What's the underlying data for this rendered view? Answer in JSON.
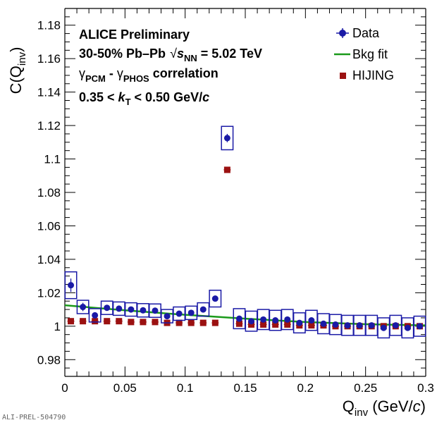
{
  "chart_data": {
    "type": "scatter",
    "title": "",
    "xlabel": {
      "main": "Q",
      "sub": "inv",
      "unit_pre": " (GeV/",
      "unit_var": "c",
      "unit_post": ")"
    },
    "ylabel": {
      "main": "C(Q",
      "sub": "inv",
      "post": ")"
    },
    "xlim": [
      0,
      0.3
    ],
    "ylim": [
      0.97,
      1.19
    ],
    "xticks": [
      "0",
      "0.05",
      "0.1",
      "0.15",
      "0.2",
      "0.25",
      "0.3"
    ],
    "xtick_values": [
      0,
      0.05,
      0.1,
      0.15,
      0.2,
      0.25,
      0.3
    ],
    "yticks": [
      "0.98",
      "1",
      "1.02",
      "1.04",
      "1.06",
      "1.08",
      "1.1",
      "1.12",
      "1.14",
      "1.16",
      "1.18"
    ],
    "ytick_values": [
      0.98,
      1.0,
      1.02,
      1.04,
      1.06,
      1.08,
      1.1,
      1.12,
      1.14,
      1.16,
      1.18
    ],
    "annotations": {
      "line1": "ALICE Preliminary",
      "line2a": "30-50% Pb–Pb",
      "line2_sqrt": "√",
      "line2_s": "s",
      "line2_sub": "NN",
      "line2_val": " = 5.02 TeV",
      "line3_g1": "γ",
      "line3_sub1": "PCM",
      "line3_dash": " - ",
      "line3_g2": "γ",
      "line3_sub2": "PHOS",
      "line3_end": " correlation",
      "line4a": "0.35 < ",
      "line4_k": "k",
      "line4_sub": "T",
      "line4b": " < 0.50 GeV/",
      "line4_c": "c"
    },
    "legend": {
      "placement": "top-right",
      "entries": [
        "Data",
        "Bkg fit",
        "HIJING"
      ]
    },
    "colors": {
      "data": "#1a1aa6",
      "fit": "#1a9a1a",
      "hijing": "#9b1111"
    },
    "series": [
      {
        "name": "Data",
        "x": [
          0.005,
          0.015,
          0.025,
          0.035,
          0.045,
          0.055,
          0.065,
          0.075,
          0.085,
          0.095,
          0.105,
          0.115,
          0.125,
          0.135,
          0.145,
          0.155,
          0.165,
          0.175,
          0.185,
          0.195,
          0.205,
          0.215,
          0.225,
          0.235,
          0.245,
          0.255,
          0.265,
          0.275,
          0.285,
          0.295
        ],
        "y": [
          1.0245,
          1.0115,
          1.0065,
          1.011,
          1.0105,
          1.01,
          1.0095,
          1.0093,
          1.006,
          1.0075,
          1.008,
          1.01,
          1.0165,
          1.1125,
          1.0045,
          1.003,
          1.004,
          1.0035,
          1.004,
          1.002,
          1.0035,
          1.0015,
          1.001,
          1.0005,
          1.0005,
          1.0005,
          0.999,
          1.0005,
          0.999,
          1.0
        ],
        "stat_err": [
          0.004,
          0.0025,
          0.0015,
          0.0015,
          0.0012,
          0.0012,
          0.0012,
          0.0012,
          0.0012,
          0.0012,
          0.0012,
          0.0012,
          0.0015,
          0.0025,
          0.001,
          0.001,
          0.001,
          0.001,
          0.001,
          0.001,
          0.001,
          0.001,
          0.001,
          0.001,
          0.001,
          0.001,
          0.001,
          0.001,
          0.001,
          0.001
        ],
        "sys_err": [
          0.008,
          0.004,
          0.004,
          0.004,
          0.004,
          0.004,
          0.004,
          0.004,
          0.004,
          0.004,
          0.004,
          0.004,
          0.005,
          0.007,
          0.006,
          0.006,
          0.006,
          0.006,
          0.006,
          0.006,
          0.006,
          0.006,
          0.006,
          0.006,
          0.006,
          0.006,
          0.006,
          0.006,
          0.006,
          0.006
        ]
      },
      {
        "name": "HIJING",
        "x": [
          0.005,
          0.015,
          0.025,
          0.035,
          0.045,
          0.055,
          0.065,
          0.075,
          0.085,
          0.095,
          0.105,
          0.115,
          0.125,
          0.135,
          0.145,
          0.155,
          0.165,
          0.175,
          0.185,
          0.195,
          0.205,
          0.215,
          0.225,
          0.235,
          0.245,
          0.255,
          0.265,
          0.275,
          0.285,
          0.295
        ],
        "y": [
          1.003,
          1.003,
          1.003,
          1.003,
          1.003,
          1.0025,
          1.0025,
          1.0025,
          1.002,
          1.002,
          1.002,
          1.002,
          1.002,
          1.0935,
          1.0015,
          1.001,
          1.001,
          1.001,
          1.001,
          1.0005,
          1.0005,
          1.0005,
          1.0,
          1.0,
          1.0,
          1.0,
          1.0,
          1.0,
          1.0,
          1.0
        ]
      },
      {
        "name": "Bkg fit",
        "x": [
          0.0,
          0.05,
          0.1,
          0.15,
          0.2,
          0.25,
          0.3
        ],
        "y": [
          1.0125,
          1.0095,
          1.0068,
          1.0045,
          1.0025,
          1.0012,
          1.0005
        ]
      }
    ]
  },
  "footer": "ALI-PREL-504790"
}
